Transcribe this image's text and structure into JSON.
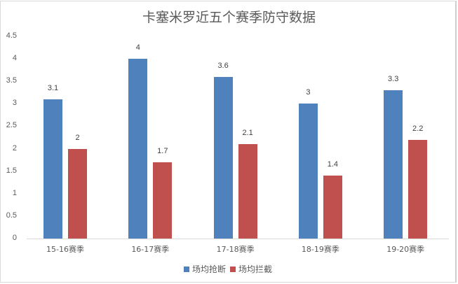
{
  "chart_data": {
    "type": "bar",
    "title": "卡塞米罗近五个赛季防守数据",
    "xlabel": "",
    "ylabel": "",
    "ylim": [
      0,
      4.5
    ],
    "yticks": [
      "0",
      "0.5",
      "1",
      "1.5",
      "2",
      "2.5",
      "3",
      "3.5",
      "4",
      "4.5"
    ],
    "categories": [
      "15-16赛季",
      "16-17赛季",
      "17-18赛季",
      "18-19赛季",
      "19-20赛季"
    ],
    "series": [
      {
        "name": "场均抢断",
        "color": "#4f81bd",
        "values": [
          3.1,
          4,
          3.6,
          3,
          3.3
        ],
        "labels": [
          "3.1",
          "4",
          "3.6",
          "3",
          "3.3"
        ]
      },
      {
        "name": "场均拦截",
        "color": "#c0504d",
        "values": [
          2,
          1.7,
          2.1,
          1.4,
          2.2
        ],
        "labels": [
          "2",
          "1.7",
          "2.1",
          "1.4",
          "2.2"
        ]
      }
    ],
    "grid": false,
    "legend_position": "bottom"
  }
}
